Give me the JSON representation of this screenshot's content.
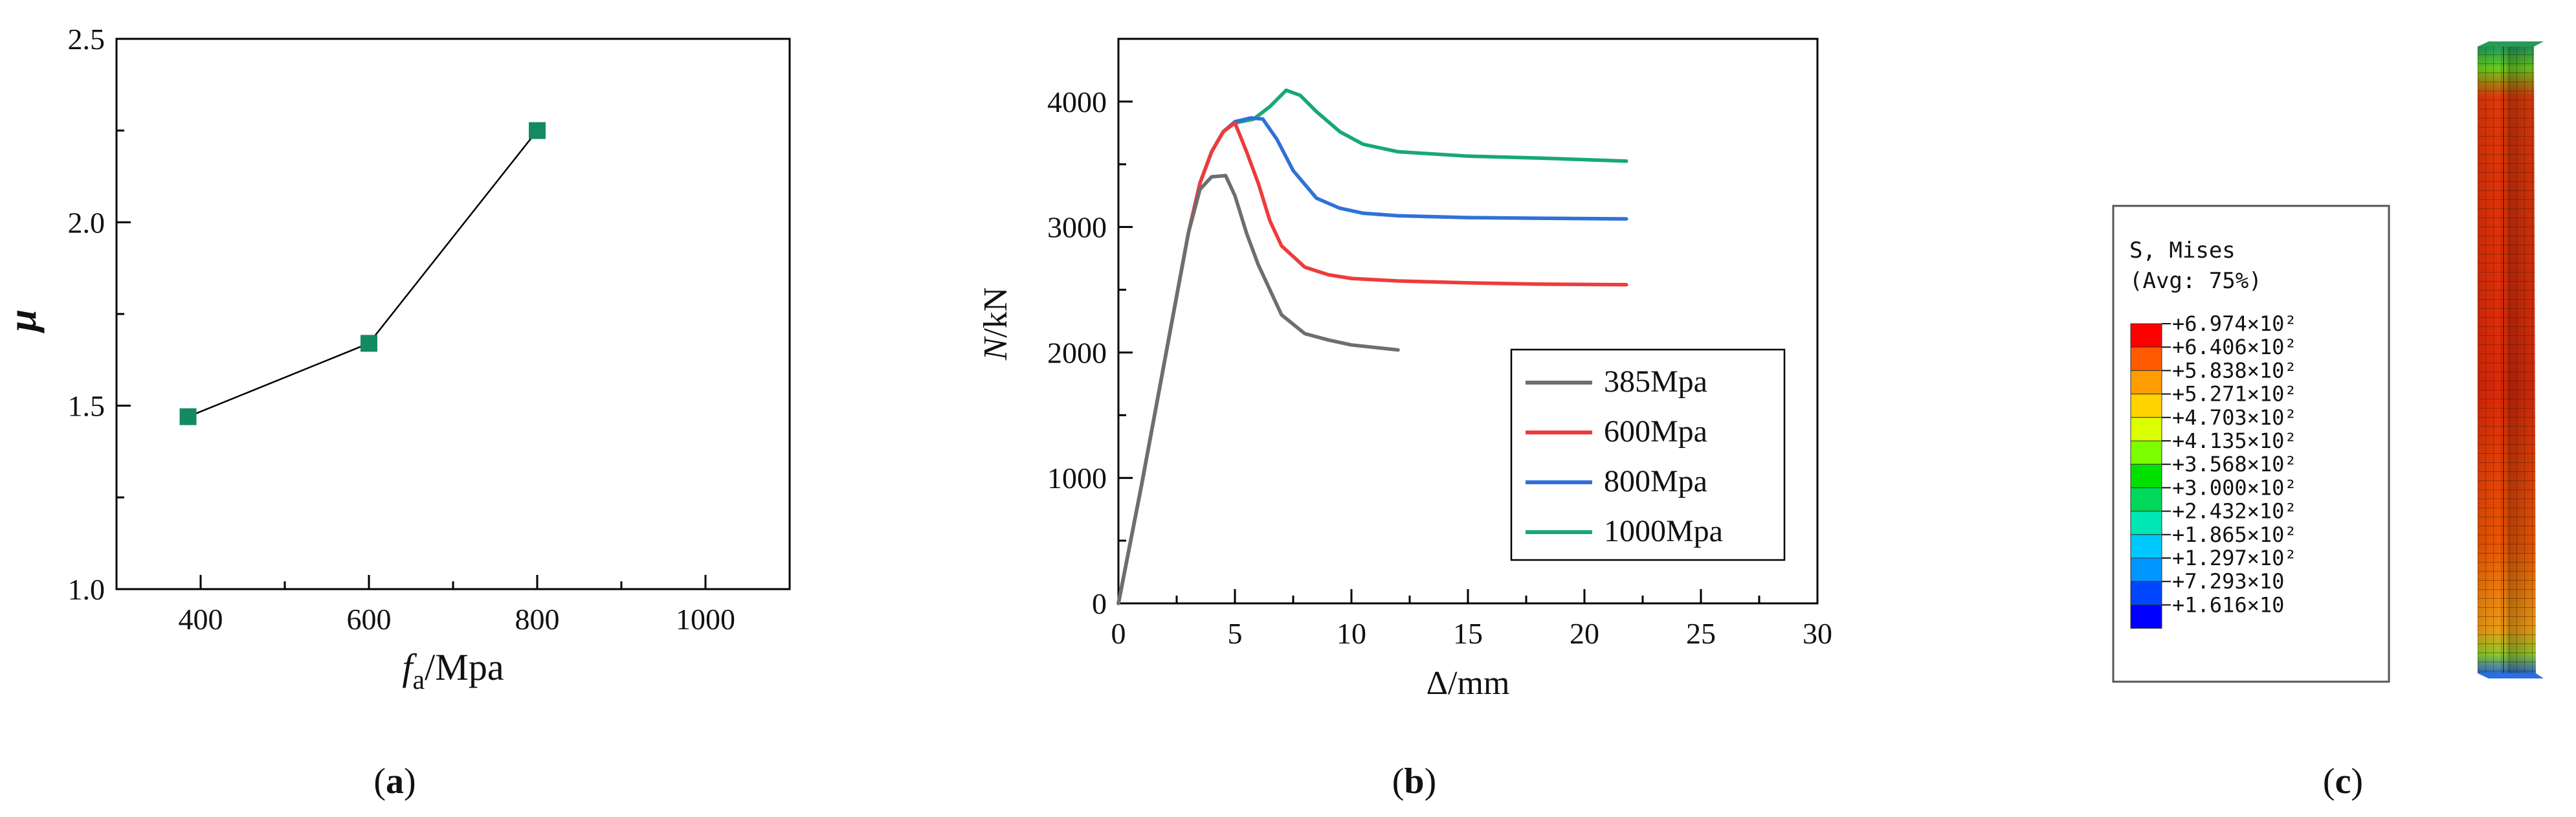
{
  "colors": {
    "marker_a": "#138a63",
    "s385": "#6e6e6e",
    "s600": "#ee3b3b",
    "s800": "#2f71d8",
    "s1000": "#17a877"
  },
  "panel_a": {
    "panel_label_open": "(",
    "panel_label_letter": "a",
    "panel_label_close": ")",
    "ylabel": "μ",
    "xlabel_main": "f",
    "xlabel_sub": "a",
    "xlabel_unit": "/Mpa"
  },
  "panel_b": {
    "panel_label_open": "(",
    "panel_label_letter": "b",
    "panel_label_close": ")",
    "ylabel_var": "N",
    "ylabel_unit": "/kN",
    "xlabel": "Δ/mm"
  },
  "panel_c": {
    "panel_label_open": "(",
    "panel_label_letter": "c",
    "panel_label_close": ")",
    "legend_title_1": "S, Mises",
    "legend_title_2": "(Avg: 75%)",
    "contour_colors": [
      "#ff0000",
      "#ff5a00",
      "#ff9c00",
      "#ffd200",
      "#d9ff00",
      "#7cff00",
      "#00e100",
      "#00d85a",
      "#00e6b4",
      "#00c8ff",
      "#0096ff",
      "#0046ff",
      "#0000ff"
    ],
    "contour_values": [
      "+6.974×10²",
      "+6.406×10²",
      "+5.838×10²",
      "+5.271×10²",
      "+4.703×10²",
      "+4.135×10²",
      "+3.568×10²",
      "+3.000×10²",
      "+2.432×10²",
      "+1.865×10²",
      "+1.297×10²",
      "+7.293×10",
      "+1.616×10"
    ]
  },
  "chart_data": [
    {
      "id": "a",
      "type": "line",
      "title": "",
      "xlabel": "fa/Mpa",
      "ylabel": "μ",
      "xlim": [
        300,
        1100
      ],
      "ylim": [
        1.0,
        2.5
      ],
      "xticks": [
        400,
        600,
        800,
        1000
      ],
      "yticks": [
        1.0,
        1.5,
        2.0,
        2.5
      ],
      "xtick_labels": [
        "400",
        "600",
        "800",
        "1000"
      ],
      "ytick_labels": [
        "1.0",
        "1.5",
        "2.0",
        "2.5"
      ],
      "grid": false,
      "series": [
        {
          "name": "μ",
          "x": [
            385,
            600,
            800
          ],
          "y": [
            1.47,
            1.67,
            2.25
          ],
          "marker": "square"
        }
      ]
    },
    {
      "id": "b",
      "type": "line",
      "title": "",
      "xlabel": "Δ/mm",
      "ylabel": "N/kN",
      "xlim": [
        0,
        30
      ],
      "ylim": [
        0,
        4500
      ],
      "xticks": [
        0,
        5,
        10,
        15,
        20,
        25,
        30
      ],
      "yticks": [
        0,
        1000,
        2000,
        3000,
        4000
      ],
      "xtick_labels": [
        "0",
        "5",
        "10",
        "15",
        "20",
        "25",
        "30"
      ],
      "ytick_labels": [
        "0",
        "1000",
        "2000",
        "3000",
        "4000"
      ],
      "grid": false,
      "legend_position": "right",
      "series": [
        {
          "name": "385Mpa",
          "color_key": "s385",
          "points": [
            [
              0,
              0
            ],
            [
              1,
              950
            ],
            [
              2,
              1950
            ],
            [
              3,
              2950
            ],
            [
              3.5,
              3300
            ],
            [
              4,
              3400
            ],
            [
              4.6,
              3410
            ],
            [
              5,
              3250
            ],
            [
              5.5,
              2950
            ],
            [
              6,
              2700
            ],
            [
              7,
              2300
            ],
            [
              8,
              2150
            ],
            [
              9,
              2100
            ],
            [
              10,
              2060
            ],
            [
              11,
              2040
            ],
            [
              12,
              2020
            ]
          ]
        },
        {
          "name": "600Mpa",
          "color_key": "s600",
          "points": [
            [
              0,
              0
            ],
            [
              1,
              950
            ],
            [
              2,
              1950
            ],
            [
              3,
              2950
            ],
            [
              3.5,
              3350
            ],
            [
              4,
              3600
            ],
            [
              4.5,
              3760
            ],
            [
              5,
              3830
            ],
            [
              5.5,
              3600
            ],
            [
              6,
              3350
            ],
            [
              6.5,
              3050
            ],
            [
              7,
              2850
            ],
            [
              8,
              2680
            ],
            [
              9,
              2620
            ],
            [
              10,
              2590
            ],
            [
              12,
              2570
            ],
            [
              15,
              2555
            ],
            [
              18,
              2545
            ],
            [
              21.8,
              2540
            ]
          ]
        },
        {
          "name": "800Mpa",
          "color_key": "s800",
          "points": [
            [
              0,
              0
            ],
            [
              1,
              950
            ],
            [
              2,
              1950
            ],
            [
              3,
              2950
            ],
            [
              3.5,
              3350
            ],
            [
              4,
              3600
            ],
            [
              4.5,
              3760
            ],
            [
              5,
              3840
            ],
            [
              5.7,
              3870
            ],
            [
              6.2,
              3860
            ],
            [
              6.8,
              3700
            ],
            [
              7.5,
              3450
            ],
            [
              8.5,
              3230
            ],
            [
              9.5,
              3150
            ],
            [
              10.5,
              3110
            ],
            [
              12,
              3090
            ],
            [
              15,
              3075
            ],
            [
              18,
              3070
            ],
            [
              21.8,
              3065
            ]
          ]
        },
        {
          "name": "1000Mpa",
          "color_key": "s1000",
          "points": [
            [
              0,
              0
            ],
            [
              1,
              950
            ],
            [
              2,
              1950
            ],
            [
              3,
              2950
            ],
            [
              3.5,
              3350
            ],
            [
              4,
              3600
            ],
            [
              4.5,
              3760
            ],
            [
              5,
              3830
            ],
            [
              5.8,
              3860
            ],
            [
              6.5,
              3960
            ],
            [
              7.2,
              4090
            ],
            [
              7.8,
              4050
            ],
            [
              8.5,
              3920
            ],
            [
              9.5,
              3760
            ],
            [
              10.5,
              3660
            ],
            [
              12,
              3600
            ],
            [
              15,
              3565
            ],
            [
              18,
              3550
            ],
            [
              21.8,
              3525
            ]
          ]
        }
      ]
    }
  ]
}
